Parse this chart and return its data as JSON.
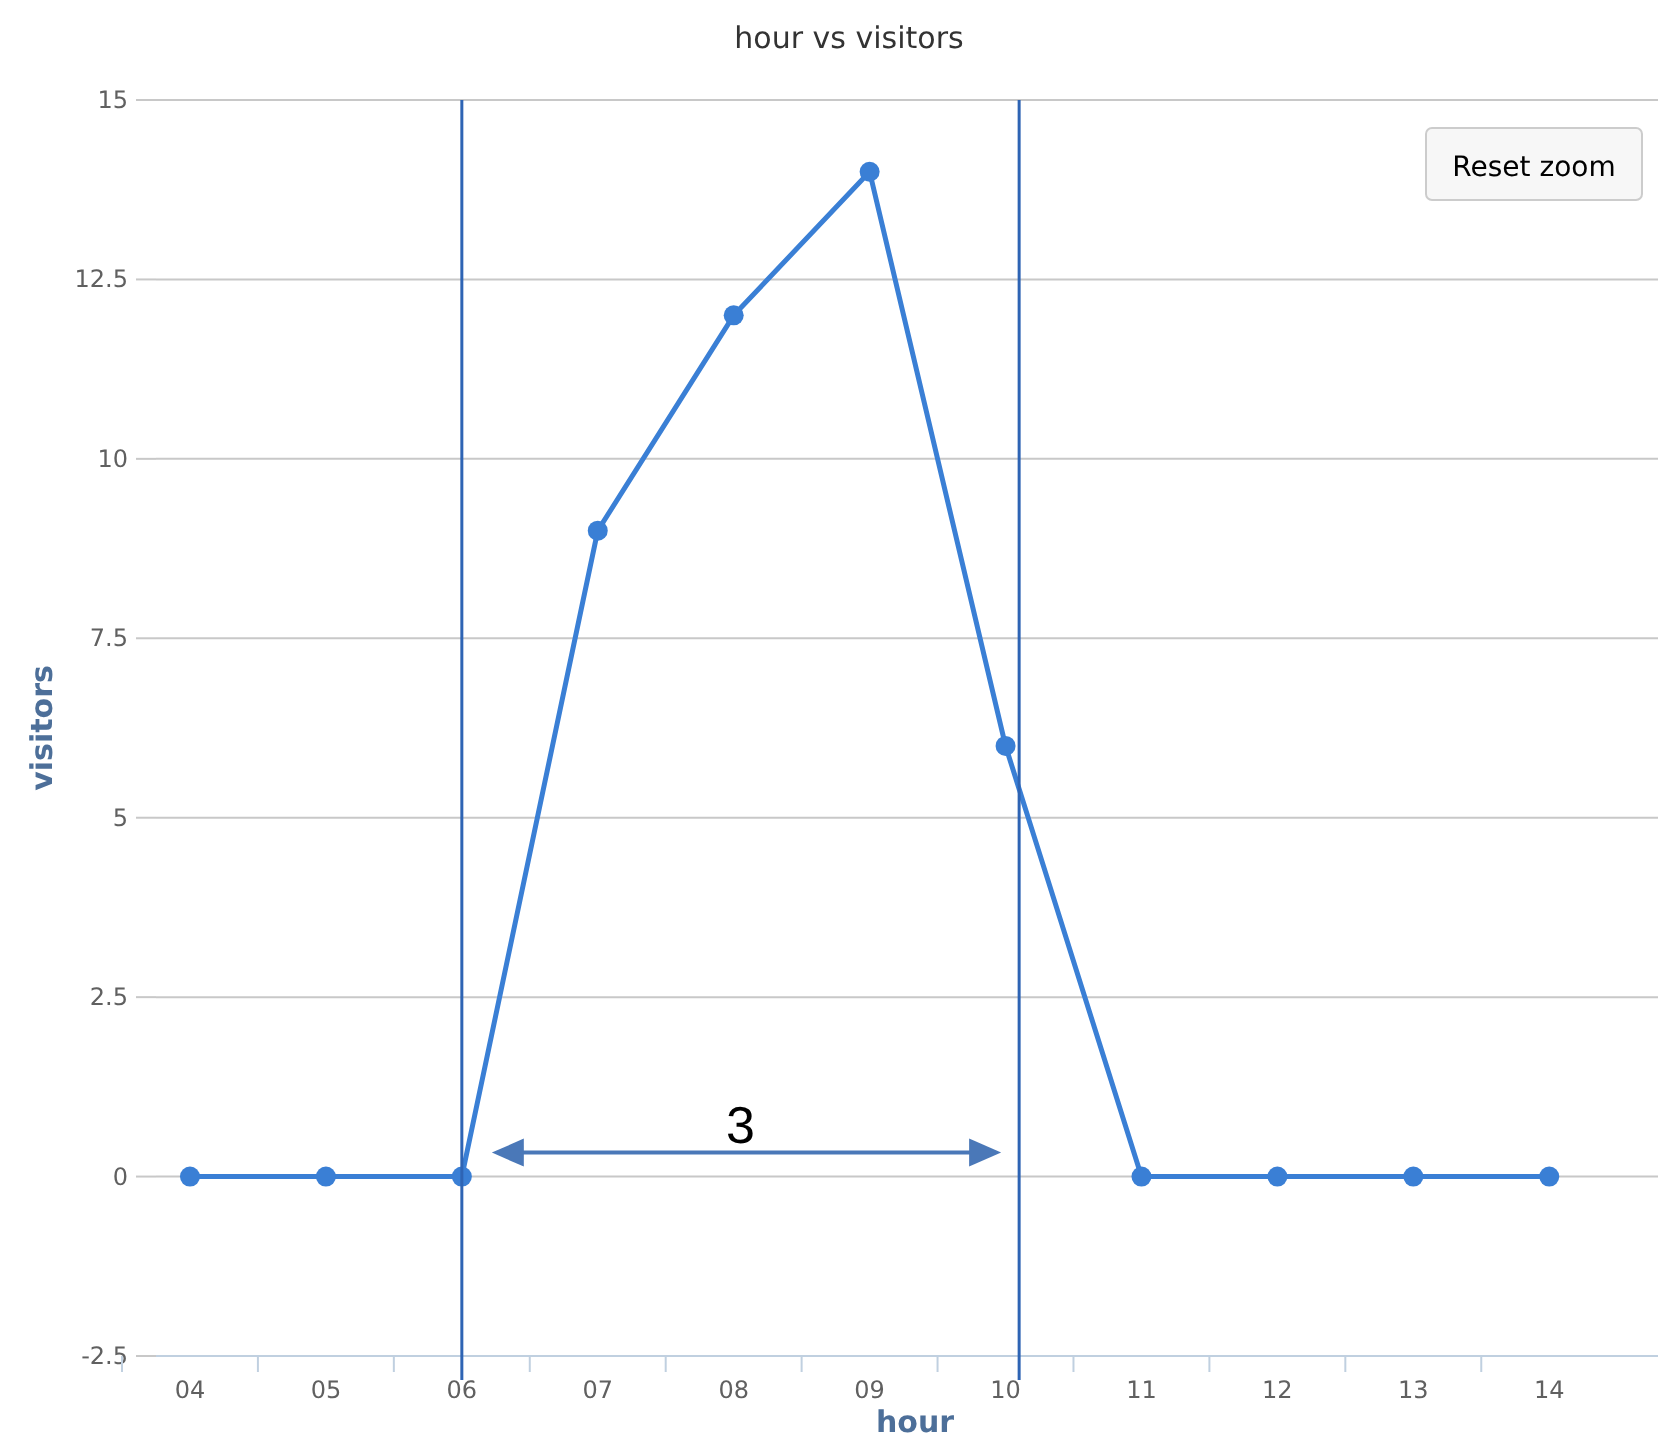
{
  "chart_data": {
    "type": "line",
    "title": "hour vs visitors",
    "xlabel": "hour",
    "ylabel": "visitors",
    "x": [
      4,
      5,
      6,
      7,
      8,
      9,
      10,
      11,
      12,
      13,
      14
    ],
    "series": [
      {
        "color": "#3a7fd5",
        "values": [
          0,
          0,
          0,
          9,
          12,
          14,
          6,
          0,
          0,
          0,
          0
        ]
      }
    ],
    "xlim": [
      3.75,
      14.8
    ],
    "xticks": [
      {
        "value": 4,
        "label": "04"
      },
      {
        "value": 5,
        "label": "05"
      },
      {
        "value": 6,
        "label": "06"
      },
      {
        "value": 7,
        "label": "07"
      },
      {
        "value": 8,
        "label": "08"
      },
      {
        "value": 9,
        "label": "09"
      },
      {
        "value": 10,
        "label": "10"
      },
      {
        "value": 11,
        "label": "11"
      },
      {
        "value": 12,
        "label": "12"
      },
      {
        "value": 13,
        "label": "13"
      },
      {
        "value": 14,
        "label": "14"
      }
    ],
    "ylim": [
      -2.5,
      15
    ],
    "yticks": [
      -2.5,
      0,
      2.5,
      5,
      7.5,
      10,
      12.5,
      15
    ],
    "grid": "y",
    "marker": "circle",
    "line_style": "solid",
    "ref_lines": [
      {
        "axis": "x",
        "value": 6,
        "color": "#2e64b4"
      },
      {
        "axis": "x",
        "value": 10.1,
        "color": "#2e64b4"
      }
    ],
    "annotations": [
      "3",
      "Reset zoom"
    ]
  }
}
